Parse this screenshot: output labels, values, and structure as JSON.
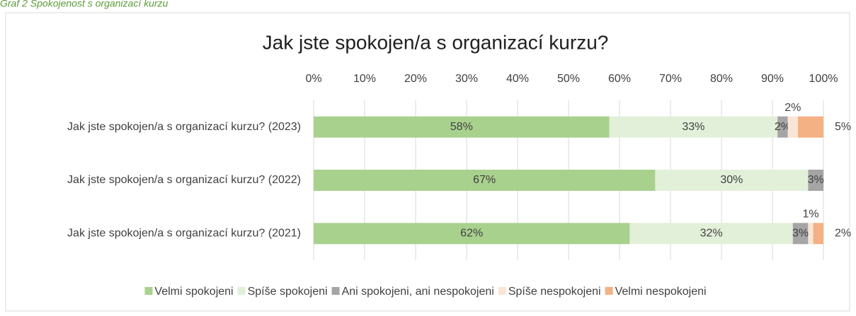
{
  "chart_data": {
    "type": "stacked_bar_horizontal",
    "caption": "Graf 2 Spokojenost s organizací kurzu",
    "title": "Jak jste spokojen/a s organizací kurzu?",
    "categories": [
      "Jak jste spokojen/a s organizací kurzu? (2023)",
      "Jak jste spokojen/a s organizací kurzu? (2022)",
      "Jak jste spokojen/a s organizací kurzu? (2021)"
    ],
    "series": [
      {
        "name": "Velmi spokojeni",
        "color": "#a9d18e",
        "values": [
          58,
          67,
          62
        ],
        "value_labels": [
          "58%",
          "67%",
          "62%"
        ]
      },
      {
        "name": "Spíše spokojeni",
        "color": "#e2f0d9",
        "values": [
          33,
          30,
          32
        ],
        "value_labels": [
          "33%",
          "30%",
          "32%"
        ]
      },
      {
        "name": "Ani spokojeni, ani nespokojeni",
        "color": "#a5a5a5",
        "values": [
          2,
          3,
          3
        ],
        "value_labels": [
          "2%",
          "3%",
          "3%"
        ]
      },
      {
        "name": "Spíše nespokojeni",
        "color": "#fbe5d6",
        "values": [
          2,
          0,
          1
        ],
        "value_labels": [
          "2%",
          null,
          "1%"
        ]
      },
      {
        "name": "Velmi nespokojeni",
        "color": "#f4b183",
        "values": [
          5,
          0,
          2
        ],
        "value_labels": [
          "5%",
          null,
          "2%"
        ]
      }
    ],
    "xlim": [
      0,
      100
    ],
    "xticks": [
      {
        "value": 0,
        "label": "0%"
      },
      {
        "value": 10,
        "label": "10%"
      },
      {
        "value": 20,
        "label": "20%"
      },
      {
        "value": 30,
        "label": "30%"
      },
      {
        "value": 40,
        "label": "40%"
      },
      {
        "value": 50,
        "label": "50%"
      },
      {
        "value": 60,
        "label": "60%"
      },
      {
        "value": 70,
        "label": "70%"
      },
      {
        "value": 80,
        "label": "80%"
      },
      {
        "value": 90,
        "label": "90%"
      },
      {
        "value": 100,
        "label": "100%"
      }
    ],
    "grid": true,
    "legend": "bottom"
  }
}
